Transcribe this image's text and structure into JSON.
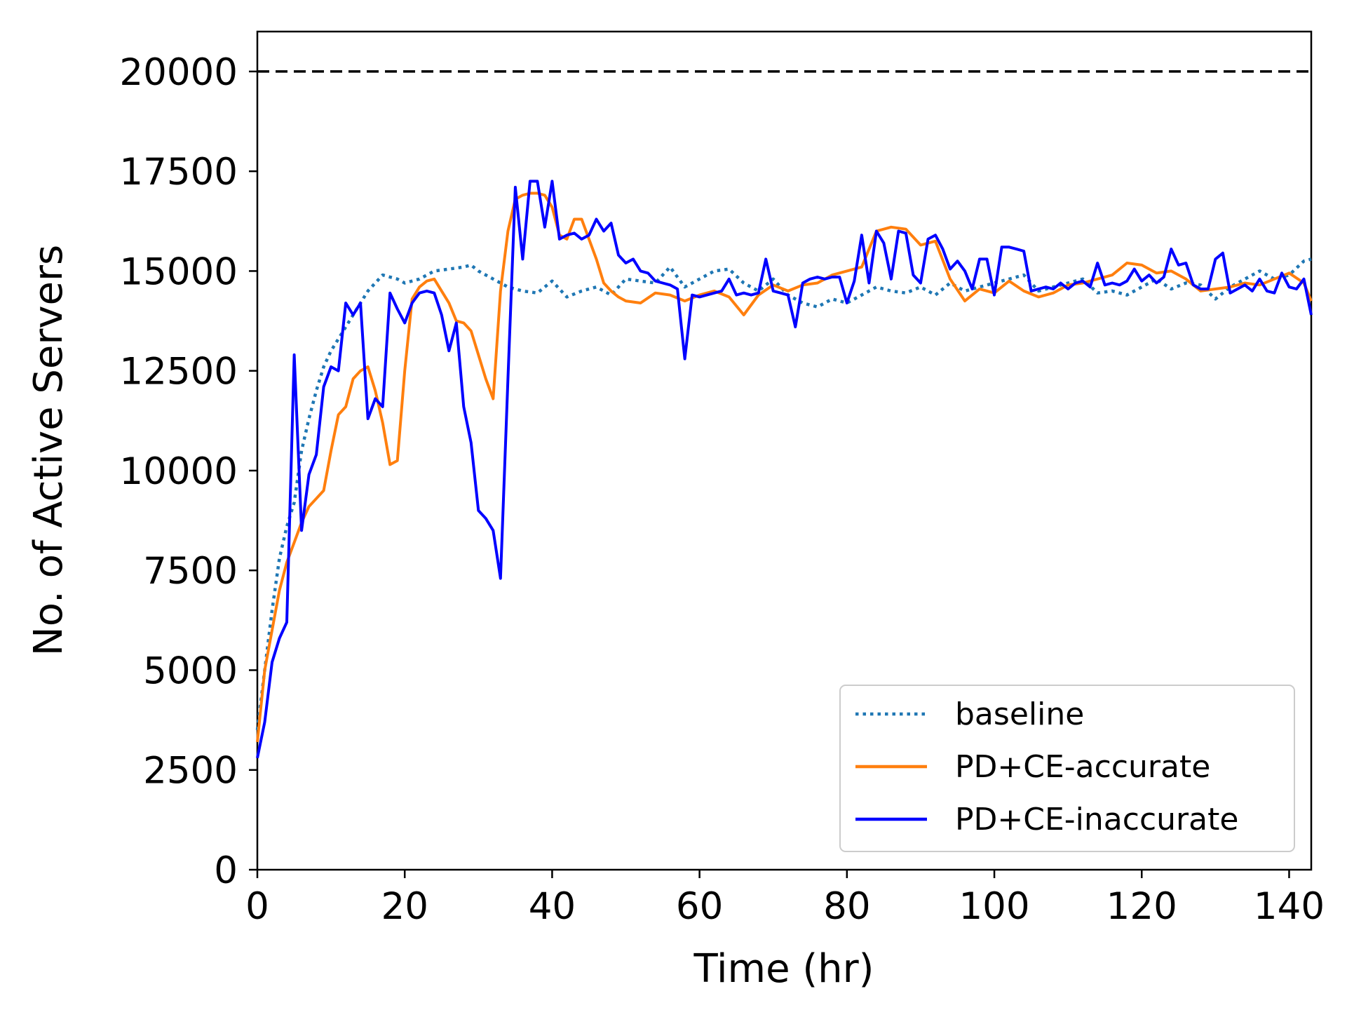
{
  "chart_data": {
    "type": "line",
    "xlabel": "Time (hr)",
    "ylabel": "No. of Active Servers",
    "xlim": [
      0,
      143
    ],
    "ylim": [
      0,
      21000
    ],
    "xticks": [
      "0",
      "20",
      "40",
      "60",
      "80",
      "100",
      "120",
      "140"
    ],
    "yticks": [
      "0",
      "2500",
      "5000",
      "7500",
      "10000",
      "12500",
      "15000",
      "17500",
      "20000"
    ],
    "grid": false,
    "legend_position": "lower-right",
    "reference_line": {
      "y": 20000,
      "style": "dashed",
      "color": "#000000"
    },
    "series": [
      {
        "name": "baseline",
        "style": "dotted",
        "color": "#1f77b4",
        "x": [
          0,
          1,
          2,
          3,
          4,
          5,
          6,
          7,
          8,
          9,
          10,
          11,
          12,
          13,
          14,
          15,
          16,
          17,
          18,
          19,
          20,
          22,
          24,
          26,
          28,
          29,
          30,
          32,
          34,
          36,
          38,
          40,
          42,
          44,
          46,
          48,
          50,
          52,
          54,
          56,
          58,
          60,
          62,
          64,
          66,
          68,
          70,
          72,
          74,
          76,
          78,
          80,
          82,
          84,
          86,
          88,
          90,
          92,
          94,
          96,
          98,
          100,
          102,
          104,
          106,
          108,
          110,
          112,
          114,
          116,
          118,
          120,
          122,
          124,
          126,
          128,
          130,
          132,
          134,
          136,
          138,
          140,
          142,
          143
        ],
        "values": [
          3500,
          5000,
          6500,
          7800,
          8600,
          9200,
          10500,
          11300,
          12000,
          12600,
          13000,
          13300,
          13600,
          13900,
          14200,
          14500,
          14700,
          14900,
          14850,
          14800,
          14700,
          14800,
          15000,
          15050,
          15100,
          15150,
          15000,
          14800,
          14600,
          14500,
          14450,
          14750,
          14350,
          14500,
          14600,
          14400,
          14800,
          14750,
          14700,
          15100,
          14600,
          14800,
          15000,
          15050,
          14700,
          14500,
          14800,
          14400,
          14200,
          14100,
          14300,
          14200,
          14400,
          14600,
          14500,
          14450,
          14600,
          14400,
          14700,
          14500,
          14600,
          14700,
          14800,
          14900,
          14500,
          14600,
          14700,
          14800,
          14450,
          14500,
          14400,
          14600,
          14800,
          14550,
          14700,
          14650,
          14300,
          14600,
          14800,
          15000,
          14800,
          14900,
          15250,
          15300
        ]
      },
      {
        "name": "PD+CE-accurate",
        "style": "solid",
        "color": "#ff7f0e",
        "x": [
          0,
          1,
          2,
          3,
          4,
          5,
          6,
          7,
          8,
          9,
          10,
          11,
          12,
          13,
          14,
          15,
          16,
          17,
          18,
          19,
          20,
          21,
          22,
          23,
          24,
          25,
          26,
          27,
          28,
          29,
          30,
          31,
          32,
          33,
          34,
          35,
          36,
          37,
          38,
          39,
          40,
          41,
          42,
          43,
          44,
          45,
          46,
          47,
          48,
          49,
          50,
          52,
          54,
          56,
          58,
          60,
          62,
          64,
          66,
          68,
          70,
          72,
          74,
          76,
          78,
          80,
          82,
          84,
          86,
          88,
          90,
          92,
          94,
          96,
          98,
          100,
          102,
          104,
          106,
          108,
          110,
          112,
          114,
          116,
          118,
          120,
          122,
          124,
          126,
          128,
          130,
          132,
          134,
          136,
          138,
          140,
          142,
          143
        ],
        "values": [
          3200,
          5000,
          6000,
          7000,
          7700,
          8200,
          8700,
          9100,
          9300,
          9500,
          10500,
          11400,
          11600,
          12300,
          12500,
          12600,
          12000,
          11200,
          10150,
          10250,
          12500,
          14300,
          14600,
          14750,
          14800,
          14500,
          14200,
          13750,
          13700,
          13500,
          12900,
          12300,
          11800,
          14500,
          16000,
          16800,
          16900,
          16950,
          16950,
          16900,
          16600,
          15900,
          15800,
          16300,
          16300,
          15800,
          15300,
          14700,
          14500,
          14350,
          14250,
          14200,
          14450,
          14400,
          14250,
          14400,
          14500,
          14350,
          13900,
          14400,
          14650,
          14500,
          14650,
          14700,
          14900,
          15000,
          15100,
          16000,
          16100,
          16050,
          15650,
          15750,
          14800,
          14250,
          14550,
          14450,
          14750,
          14500,
          14350,
          14450,
          14650,
          14700,
          14800,
          14900,
          15200,
          15150,
          14950,
          15000,
          14800,
          14500,
          14550,
          14600,
          14700,
          14650,
          14800,
          14950,
          14700,
          14250
        ]
      },
      {
        "name": "PD+CE-inaccurate",
        "style": "solid",
        "color": "#0000ff",
        "x": [
          0,
          1,
          2,
          3,
          4,
          5,
          6,
          7,
          8,
          9,
          10,
          11,
          12,
          13,
          14,
          15,
          16,
          17,
          18,
          19,
          20,
          21,
          22,
          23,
          24,
          25,
          26,
          27,
          28,
          29,
          30,
          31,
          32,
          33,
          34,
          35,
          36,
          37,
          38,
          39,
          40,
          41,
          42,
          43,
          44,
          45,
          46,
          47,
          48,
          49,
          50,
          51,
          52,
          53,
          54,
          55,
          56,
          57,
          58,
          59,
          60,
          61,
          62,
          63,
          64,
          65,
          66,
          67,
          68,
          69,
          70,
          71,
          72,
          73,
          74,
          75,
          76,
          77,
          78,
          79,
          80,
          81,
          82,
          83,
          84,
          85,
          86,
          87,
          88,
          89,
          90,
          91,
          92,
          93,
          94,
          95,
          96,
          97,
          98,
          99,
          100,
          101,
          102,
          103,
          104,
          105,
          106,
          107,
          108,
          109,
          110,
          111,
          112,
          113,
          114,
          115,
          116,
          117,
          118,
          119,
          120,
          121,
          122,
          123,
          124,
          125,
          126,
          127,
          128,
          129,
          130,
          131,
          132,
          133,
          134,
          135,
          136,
          137,
          138,
          139,
          140,
          141,
          142,
          143
        ],
        "values": [
          2800,
          3700,
          5200,
          5800,
          6200,
          12900,
          8500,
          9900,
          10400,
          12100,
          12600,
          12500,
          14200,
          13900,
          14200,
          11300,
          11800,
          11600,
          14450,
          14050,
          13700,
          14200,
          14450,
          14500,
          14450,
          13900,
          13000,
          13700,
          11600,
          10700,
          9000,
          8800,
          8500,
          7300,
          12300,
          17100,
          15300,
          17250,
          17250,
          16100,
          17250,
          15800,
          15900,
          15950,
          15800,
          15900,
          16300,
          16000,
          16200,
          15400,
          15200,
          15300,
          15000,
          14950,
          14750,
          14700,
          14650,
          14550,
          12800,
          14400,
          14350,
          14400,
          14450,
          14500,
          14800,
          14400,
          14450,
          14400,
          14450,
          15300,
          14500,
          14450,
          14400,
          13600,
          14700,
          14800,
          14850,
          14800,
          14850,
          14850,
          14200,
          14750,
          15900,
          14700,
          16000,
          15700,
          14800,
          16000,
          15950,
          14900,
          14700,
          15800,
          15900,
          15550,
          15050,
          15250,
          15000,
          14550,
          15300,
          15300,
          14400,
          15600,
          15600,
          15550,
          15500,
          14500,
          14550,
          14600,
          14550,
          14700,
          14550,
          14700,
          14750,
          14600,
          15200,
          14650,
          14700,
          14650,
          14750,
          15050,
          14750,
          14900,
          14700,
          14850,
          15550,
          15150,
          15200,
          14650,
          14550,
          14550,
          15300,
          15450,
          14450,
          14550,
          14650,
          14500,
          14800,
          14500,
          14450,
          14950,
          14600,
          14550,
          14800,
          13900
        ]
      }
    ]
  }
}
